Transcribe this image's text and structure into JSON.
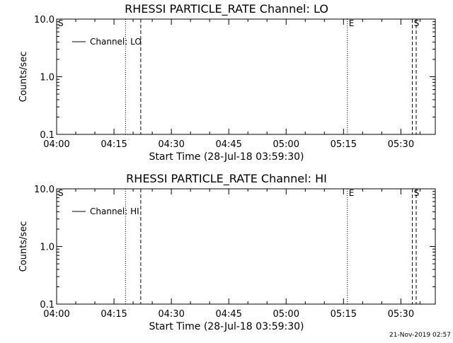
{
  "chart_data": [
    {
      "type": "line",
      "title": "RHESSI PARTICLE_RATE Channel: LO",
      "xlabel": "Start Time (28-Jul-18 03:59:30)",
      "ylabel": "Counts/sec",
      "yscale": "log",
      "ylim": [
        0.1,
        10.0
      ],
      "xlim": [
        "04:00",
        "05:39"
      ],
      "x_ticks": [
        "04:00",
        "04:15",
        "04:30",
        "04:45",
        "05:00",
        "05:15",
        "05:30"
      ],
      "y_ticks": [
        "0.1",
        "1.0",
        "10.0"
      ],
      "legend": {
        "position": "top-left",
        "entries": [
          "Channel: LO"
        ]
      },
      "series": [
        {
          "name": "Channel: LO",
          "x": [],
          "y": []
        }
      ],
      "vlines": [
        {
          "time": "04:18",
          "style": "dotted"
        },
        {
          "time": "04:22",
          "style": "dashed"
        },
        {
          "time": "05:16",
          "style": "dotted",
          "label": "E"
        },
        {
          "time": "05:33",
          "style": "dashed",
          "label": "S"
        },
        {
          "time": "05:34",
          "style": "dashed"
        }
      ],
      "left_marker_label": "S"
    },
    {
      "type": "line",
      "title": "RHESSI PARTICLE_RATE Channel: HI",
      "xlabel": "Start Time (28-Jul-18 03:59:30)",
      "ylabel": "Counts/sec",
      "yscale": "log",
      "ylim": [
        0.1,
        10.0
      ],
      "xlim": [
        "04:00",
        "05:39"
      ],
      "x_ticks": [
        "04:00",
        "04:15",
        "04:30",
        "04:45",
        "05:00",
        "05:15",
        "05:30"
      ],
      "y_ticks": [
        "0.1",
        "1.0",
        "10.0"
      ],
      "legend": {
        "position": "top-left",
        "entries": [
          "Channel: HI"
        ]
      },
      "series": [
        {
          "name": "Channel: HI",
          "x": [],
          "y": []
        }
      ],
      "vlines": [
        {
          "time": "04:18",
          "style": "dotted"
        },
        {
          "time": "04:22",
          "style": "dashed"
        },
        {
          "time": "05:16",
          "style": "dotted",
          "label": "E"
        },
        {
          "time": "05:33",
          "style": "dashed",
          "label": "S"
        },
        {
          "time": "05:34",
          "style": "dashed"
        }
      ],
      "left_marker_label": "S"
    }
  ],
  "footer": {
    "timestamp": "21-Nov-2019 02:57"
  }
}
